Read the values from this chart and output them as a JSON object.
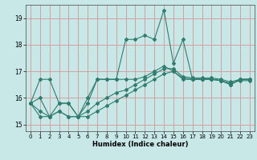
{
  "title": "",
  "xlabel": "Humidex (Indice chaleur)",
  "xlim": [
    -0.5,
    23.5
  ],
  "ylim": [
    14.75,
    19.5
  ],
  "yticks": [
    15,
    16,
    17,
    18,
    19
  ],
  "xticks": [
    0,
    1,
    2,
    3,
    4,
    5,
    6,
    7,
    8,
    9,
    10,
    11,
    12,
    13,
    14,
    15,
    16,
    17,
    18,
    19,
    20,
    21,
    22,
    23
  ],
  "bg_color": "#c8e8e8",
  "grid_color": "#d4a0a0",
  "line_color": "#2e7d6e",
  "series": [
    {
      "x": [
        0,
        1,
        2,
        3,
        4,
        5,
        6,
        7,
        8,
        9,
        10,
        11,
        12,
        13,
        14,
        15,
        16,
        17,
        18,
        19,
        20,
        21,
        22,
        23
      ],
      "y": [
        15.8,
        16.7,
        16.7,
        15.8,
        15.8,
        15.3,
        16.0,
        16.7,
        16.7,
        16.7,
        18.2,
        18.2,
        18.35,
        18.2,
        19.3,
        17.3,
        18.2,
        16.7,
        16.7,
        16.7,
        16.65,
        16.5,
        16.7,
        16.7
      ]
    },
    {
      "x": [
        0,
        1,
        2,
        3,
        4,
        5,
        6,
        7,
        8,
        9,
        10,
        11,
        12,
        13,
        14,
        15,
        16,
        17,
        18,
        19,
        20,
        21,
        22,
        23
      ],
      "y": [
        15.8,
        16.0,
        15.3,
        15.8,
        15.8,
        15.3,
        15.8,
        16.7,
        16.7,
        16.7,
        16.7,
        16.7,
        16.8,
        17.0,
        17.2,
        17.0,
        16.7,
        16.7,
        16.7,
        16.7,
        16.65,
        16.5,
        16.7,
        16.7
      ]
    },
    {
      "x": [
        0,
        1,
        2,
        3,
        4,
        5,
        6,
        7,
        8,
        9,
        10,
        11,
        12,
        13,
        14,
        15,
        16,
        17,
        18,
        19,
        20,
        21,
        22,
        23
      ],
      "y": [
        15.8,
        15.5,
        15.3,
        15.5,
        15.3,
        15.3,
        15.5,
        15.8,
        16.0,
        16.2,
        16.3,
        16.5,
        16.7,
        16.9,
        17.1,
        17.1,
        16.8,
        16.75,
        16.75,
        16.75,
        16.7,
        16.6,
        16.7,
        16.7
      ]
    },
    {
      "x": [
        0,
        1,
        2,
        3,
        4,
        5,
        6,
        7,
        8,
        9,
        10,
        11,
        12,
        13,
        14,
        15,
        16,
        17,
        18,
        19,
        20,
        21,
        22,
        23
      ],
      "y": [
        15.8,
        15.3,
        15.3,
        15.5,
        15.3,
        15.3,
        15.3,
        15.5,
        15.7,
        15.9,
        16.1,
        16.3,
        16.5,
        16.7,
        16.9,
        17.0,
        16.75,
        16.7,
        16.7,
        16.7,
        16.65,
        16.55,
        16.65,
        16.65
      ]
    }
  ]
}
